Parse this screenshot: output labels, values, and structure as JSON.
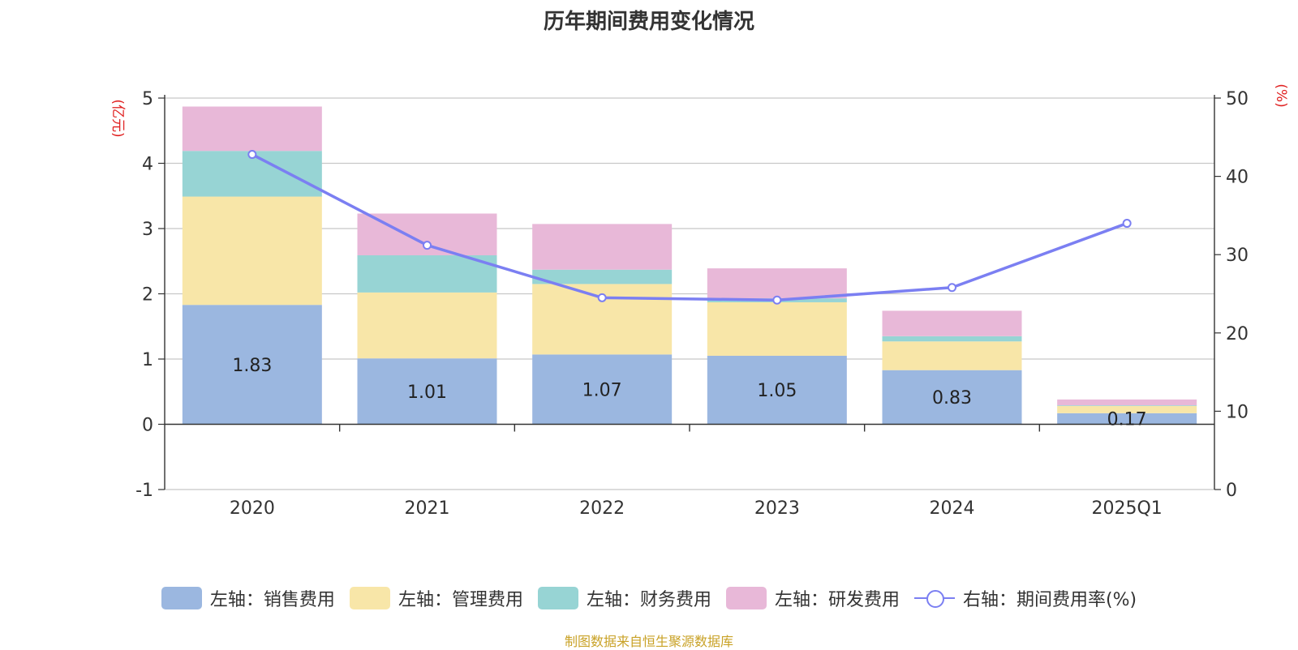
{
  "chart_data": {
    "type": "bar",
    "stacked": true,
    "title": "历年期间费用变化情况",
    "categories": [
      "2020",
      "2021",
      "2022",
      "2023",
      "2024",
      "2025Q1"
    ],
    "y_left": {
      "unit_label": "(亿元)",
      "ylim": [
        -1,
        5
      ],
      "ticks": [
        "-1",
        "0",
        "1",
        "2",
        "3",
        "4",
        "5"
      ]
    },
    "y_right": {
      "unit_label": "(%)",
      "ylim": [
        0,
        50
      ],
      "ticks": [
        "0",
        "10",
        "20",
        "30",
        "40",
        "50"
      ]
    },
    "grid": true,
    "legend_position": "bottom",
    "series": [
      {
        "name": "左轴：销售费用",
        "type": "bar",
        "axis": "left",
        "color": "#9bb7e0",
        "values": [
          1.83,
          1.01,
          1.07,
          1.05,
          0.83,
          0.17
        ],
        "data_labels": [
          "1.83",
          "1.01",
          "1.07",
          "1.05",
          "0.83",
          "0.17"
        ]
      },
      {
        "name": "左轴：管理费用",
        "type": "bar",
        "axis": "left",
        "color": "#f8e6a8",
        "values": [
          1.66,
          1.01,
          1.08,
          0.82,
          0.44,
          0.11
        ]
      },
      {
        "name": "左轴：财务费用",
        "type": "bar",
        "axis": "left",
        "color": "#97d4d4",
        "values": [
          0.7,
          0.57,
          0.22,
          0.06,
          0.08,
          0.01
        ]
      },
      {
        "name": "左轴：研发费用",
        "type": "bar",
        "axis": "left",
        "color": "#e8b8d8",
        "values": [
          0.68,
          0.64,
          0.7,
          0.46,
          0.39,
          0.09
        ]
      },
      {
        "name": "右轴：期间费用率(%)",
        "type": "line",
        "axis": "right",
        "color": "#7b7ff2",
        "values": [
          42.8,
          31.2,
          24.5,
          24.2,
          25.8,
          34.0
        ]
      }
    ]
  },
  "source_note": "制图数据来自恒生聚源数据库"
}
